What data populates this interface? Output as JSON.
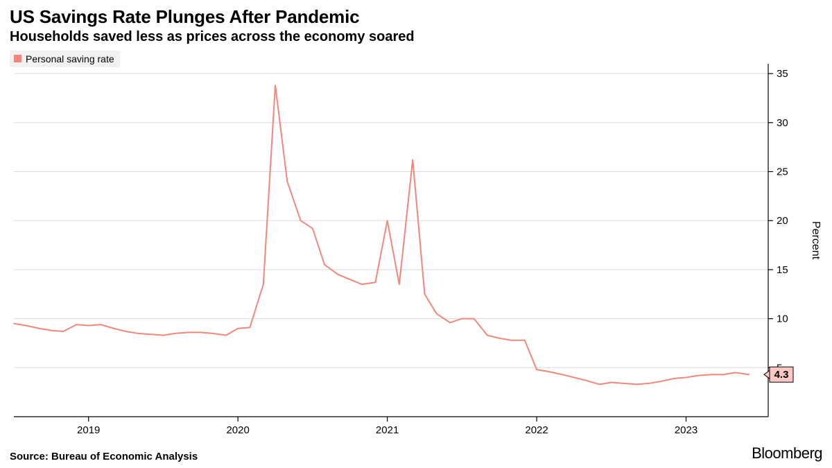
{
  "header": {
    "title": "US Savings Rate Plunges After Pandemic",
    "subtitle": "Households saved less as prices across the economy soared"
  },
  "legend": {
    "label": "Personal saving rate",
    "swatch_color": "#f28779"
  },
  "chart": {
    "type": "line",
    "line_color": "#f28779",
    "line_width": 2,
    "background_color": "#ffffff",
    "grid_color": "#d9d9d9",
    "axis_color": "#000000",
    "x": {
      "min": 2018.5,
      "max": 2023.55,
      "ticks": [
        2019,
        2020,
        2021,
        2022,
        2023
      ],
      "tick_labels": [
        "2019",
        "2020",
        "2021",
        "2022",
        "2023"
      ],
      "tick_fontsize": 15
    },
    "y": {
      "min": 0,
      "max": 36,
      "ticks": [
        5,
        10,
        15,
        20,
        25,
        30,
        35
      ],
      "tick_labels": [
        "5",
        "10",
        "15",
        "20",
        "25",
        "30",
        "35"
      ],
      "label": "Percent",
      "label_fontsize": 16,
      "tick_fontsize": 15
    },
    "series": {
      "name": "Personal saving rate",
      "x": [
        2018.5,
        2018.58,
        2018.67,
        2018.75,
        2018.83,
        2018.92,
        2019.0,
        2019.08,
        2019.17,
        2019.25,
        2019.33,
        2019.42,
        2019.5,
        2019.58,
        2019.67,
        2019.75,
        2019.83,
        2019.92,
        2020.0,
        2020.08,
        2020.17,
        2020.25,
        2020.33,
        2020.42,
        2020.5,
        2020.58,
        2020.67,
        2020.75,
        2020.83,
        2020.92,
        2021.0,
        2021.08,
        2021.17,
        2021.25,
        2021.33,
        2021.42,
        2021.5,
        2021.58,
        2021.67,
        2021.75,
        2021.83,
        2021.92,
        2022.0,
        2022.08,
        2022.17,
        2022.25,
        2022.33,
        2022.42,
        2022.5,
        2022.58,
        2022.67,
        2022.75,
        2022.83,
        2022.92,
        2023.0,
        2023.08,
        2023.17,
        2023.25,
        2023.33,
        2023.42
      ],
      "y": [
        9.5,
        9.3,
        9.0,
        8.8,
        8.7,
        9.4,
        9.3,
        9.4,
        9.0,
        8.7,
        8.5,
        8.4,
        8.3,
        8.5,
        8.6,
        8.6,
        8.5,
        8.3,
        9.0,
        9.1,
        13.5,
        33.8,
        24.0,
        20.0,
        19.2,
        15.5,
        14.5,
        14.0,
        13.5,
        13.7,
        20.0,
        13.5,
        26.2,
        12.5,
        10.5,
        9.6,
        10.0,
        10.0,
        8.3,
        8.0,
        7.8,
        7.8,
        4.8,
        4.6,
        4.3,
        4.0,
        3.7,
        3.3,
        3.5,
        3.4,
        3.3,
        3.4,
        3.6,
        3.9,
        4.0,
        4.2,
        4.3,
        4.3,
        4.5,
        4.3
      ]
    },
    "callout": {
      "value_label": "4.3",
      "box_fill": "#ffc7c2",
      "box_border": "#000000",
      "text_color": "#000000",
      "fontsize": 15
    }
  },
  "footer": {
    "source": "Source: Bureau of Economic Analysis",
    "brand": "Bloomberg"
  },
  "typography": {
    "title_fontsize": 26,
    "title_weight": 900,
    "subtitle_fontsize": 20,
    "subtitle_weight": 700,
    "legend_fontsize": 14,
    "source_fontsize": 15,
    "brand_fontsize": 22
  }
}
